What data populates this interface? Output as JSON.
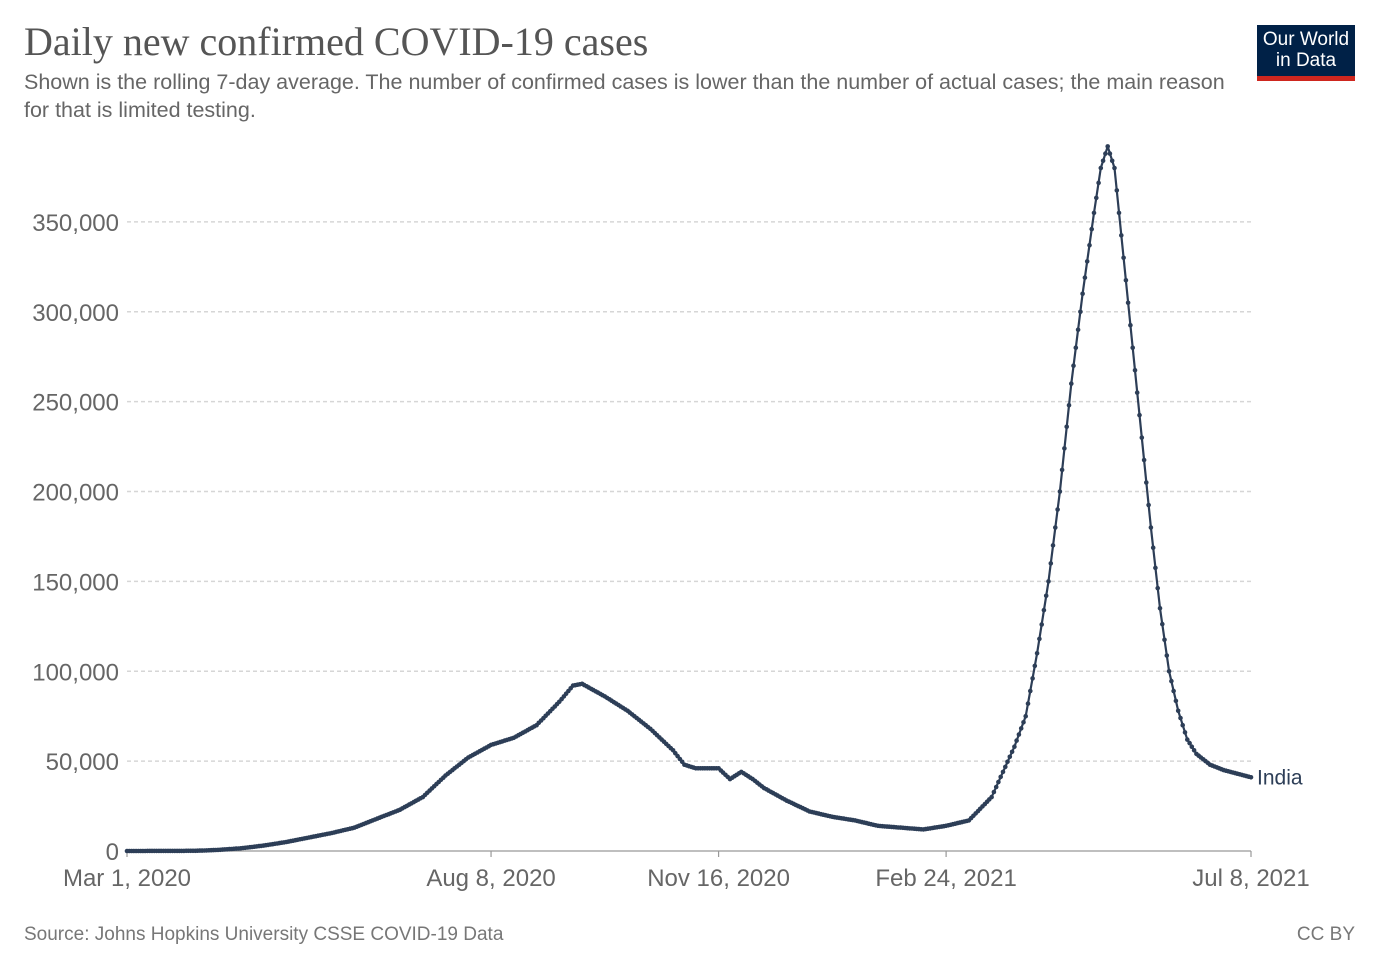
{
  "header": {
    "title": "Daily new confirmed COVID-19 cases",
    "subtitle": "Shown is the rolling 7-day average. The number of confirmed cases is lower than the number of actual cases; the main reason for that is limited testing."
  },
  "logo": {
    "line1": "Our World",
    "line2": "in Data",
    "colors": {
      "background": "#002147",
      "accent": "#ce261e"
    }
  },
  "footer": {
    "source": "Source: Johns Hopkins University CSSE COVID-19 Data",
    "license": "CC BY"
  },
  "chart_data": {
    "type": "line",
    "title": "Daily new confirmed COVID-19 cases",
    "xlabel": "",
    "ylabel": "",
    "x_start_date": "2020-03-01",
    "x_end_date": "2021-07-08",
    "xlim_days": [
      0,
      494
    ],
    "ylim": [
      0,
      400000
    ],
    "yticks": [
      0,
      50000,
      100000,
      150000,
      200000,
      250000,
      300000,
      350000
    ],
    "ytick_labels": [
      "0",
      "50,000",
      "100,000",
      "150,000",
      "200,000",
      "250,000",
      "300,000",
      "350,000"
    ],
    "xticks_days": [
      0,
      160,
      260,
      360,
      494
    ],
    "xtick_labels": [
      "Mar 1, 2020",
      "Aug 8, 2020",
      "Nov 16, 2020",
      "Feb 24, 2021",
      "Jul 8, 2021"
    ],
    "grid": true,
    "line_color": "#2d3e57",
    "series": [
      {
        "name": "India",
        "label": "India",
        "points": [
          [
            0,
            0
          ],
          [
            30,
            100
          ],
          [
            40,
            600
          ],
          [
            50,
            1500
          ],
          [
            60,
            3000
          ],
          [
            70,
            5000
          ],
          [
            80,
            7500
          ],
          [
            90,
            10000
          ],
          [
            100,
            13000
          ],
          [
            110,
            18000
          ],
          [
            120,
            23000
          ],
          [
            130,
            30000
          ],
          [
            140,
            42000
          ],
          [
            150,
            52000
          ],
          [
            160,
            59000
          ],
          [
            170,
            63000
          ],
          [
            180,
            70000
          ],
          [
            190,
            83000
          ],
          [
            196,
            92000
          ],
          [
            200,
            93000
          ],
          [
            210,
            86000
          ],
          [
            220,
            78000
          ],
          [
            230,
            68000
          ],
          [
            240,
            56000
          ],
          [
            245,
            48000
          ],
          [
            250,
            46000
          ],
          [
            260,
            46000
          ],
          [
            265,
            40000
          ],
          [
            270,
            44000
          ],
          [
            275,
            40000
          ],
          [
            280,
            35000
          ],
          [
            290,
            28000
          ],
          [
            300,
            22000
          ],
          [
            310,
            19000
          ],
          [
            320,
            17000
          ],
          [
            330,
            14000
          ],
          [
            340,
            13000
          ],
          [
            350,
            12000
          ],
          [
            360,
            14000
          ],
          [
            370,
            17000
          ],
          [
            380,
            30000
          ],
          [
            390,
            58000
          ],
          [
            395,
            75000
          ],
          [
            400,
            110000
          ],
          [
            405,
            150000
          ],
          [
            410,
            200000
          ],
          [
            415,
            260000
          ],
          [
            420,
            310000
          ],
          [
            425,
            355000
          ],
          [
            428,
            380000
          ],
          [
            431,
            392000
          ],
          [
            434,
            380000
          ],
          [
            438,
            330000
          ],
          [
            442,
            280000
          ],
          [
            446,
            230000
          ],
          [
            450,
            180000
          ],
          [
            454,
            135000
          ],
          [
            458,
            100000
          ],
          [
            462,
            78000
          ],
          [
            466,
            62000
          ],
          [
            470,
            54000
          ],
          [
            476,
            48000
          ],
          [
            482,
            45000
          ],
          [
            488,
            43000
          ],
          [
            494,
            41000
          ]
        ]
      }
    ]
  }
}
